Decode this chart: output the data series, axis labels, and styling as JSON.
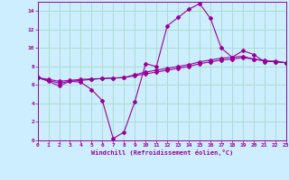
{
  "xlabel": "Windchill (Refroidissement éolien,°C)",
  "background_color": "#cceeff",
  "grid_color": "#aaddcc",
  "line_color": "#990099",
  "ylim": [
    0,
    15
  ],
  "xlim": [
    0,
    23
  ],
  "xticks": [
    0,
    1,
    2,
    3,
    4,
    5,
    6,
    7,
    8,
    9,
    10,
    11,
    12,
    13,
    14,
    15,
    16,
    17,
    18,
    19,
    20,
    21,
    22,
    23
  ],
  "yticks": [
    0,
    2,
    4,
    6,
    8,
    10,
    12,
    14
  ],
  "curve1_x": [
    0,
    1,
    2,
    3,
    4,
    5,
    6,
    7,
    8,
    9,
    10,
    11,
    12,
    13,
    14,
    15,
    16,
    17,
    18,
    19,
    20,
    21,
    22,
    23
  ],
  "curve1_y": [
    6.8,
    6.4,
    5.9,
    6.4,
    6.3,
    5.5,
    4.3,
    0.2,
    0.9,
    4.2,
    8.3,
    8.0,
    12.4,
    13.3,
    14.2,
    14.8,
    13.2,
    10.0,
    9.0,
    9.7,
    9.3,
    8.5,
    8.6,
    8.4
  ],
  "curve2_x": [
    0,
    1,
    2,
    3,
    4,
    5,
    6,
    7,
    8,
    9,
    10,
    11,
    12,
    13,
    14,
    15,
    16,
    17,
    18,
    19,
    20,
    21,
    22,
    23
  ],
  "curve2_y": [
    6.8,
    6.5,
    6.2,
    6.4,
    6.5,
    6.6,
    6.7,
    6.75,
    6.8,
    7.1,
    7.4,
    7.6,
    7.8,
    8.0,
    8.2,
    8.5,
    8.7,
    8.9,
    9.0,
    9.1,
    8.8,
    8.6,
    8.5,
    8.4
  ],
  "curve3_x": [
    0,
    1,
    2,
    3,
    4,
    5,
    6,
    7,
    8,
    9,
    10,
    11,
    12,
    13,
    14,
    15,
    16,
    17,
    18,
    19,
    20,
    21,
    22,
    23
  ],
  "curve3_y": [
    6.8,
    6.6,
    6.4,
    6.5,
    6.6,
    6.65,
    6.7,
    6.75,
    6.8,
    7.0,
    7.2,
    7.4,
    7.6,
    7.8,
    8.0,
    8.3,
    8.5,
    8.7,
    8.8,
    8.95,
    8.8,
    8.65,
    8.5,
    8.4
  ]
}
